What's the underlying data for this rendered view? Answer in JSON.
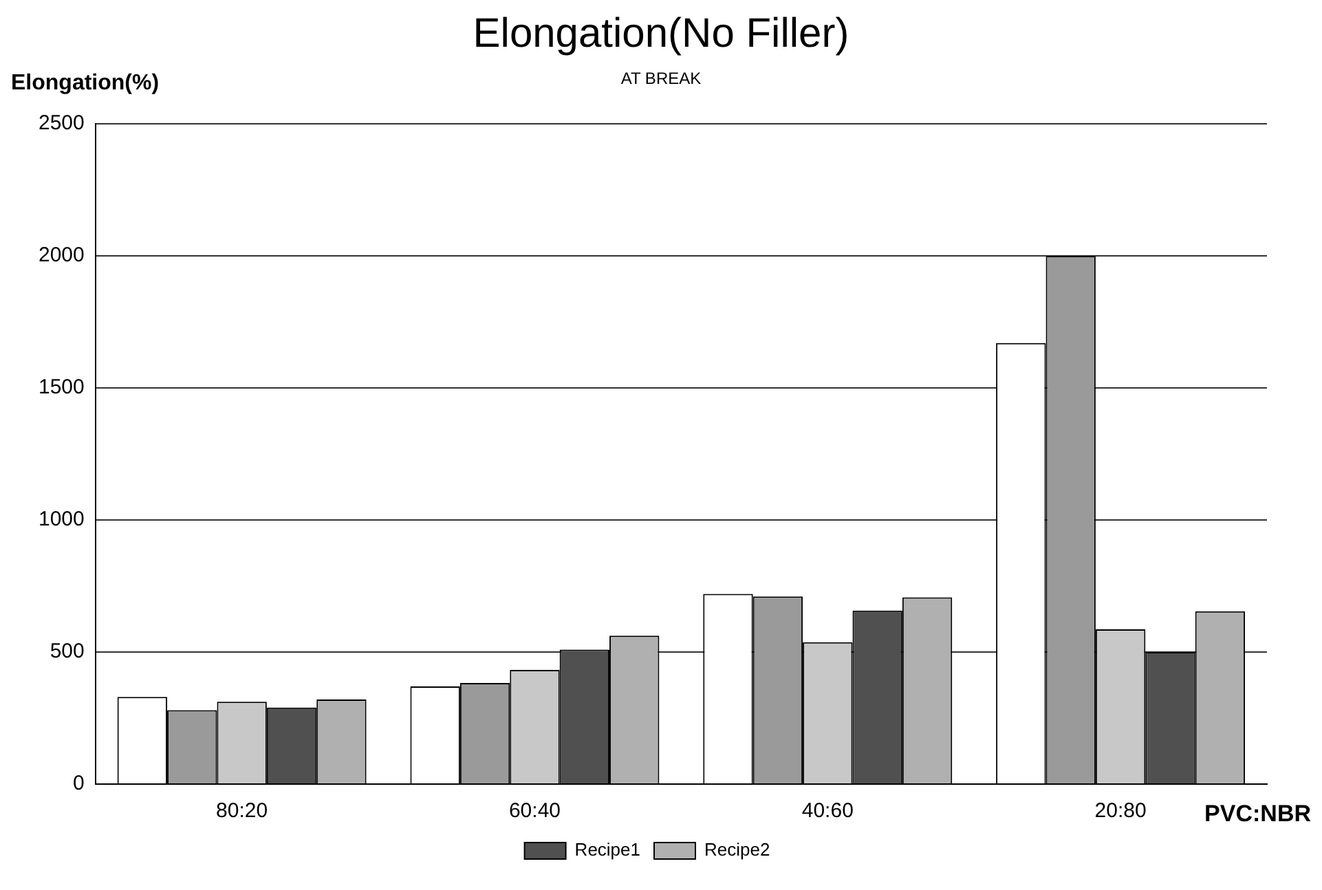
{
  "chart_data": {
    "type": "bar",
    "title": "Elongation(No Filler)",
    "subtitle": "AT BREAK",
    "ylabel": "Elongation(%)",
    "xlabel": "PVC:NBR",
    "categories": [
      "80:20",
      "60:40",
      "40:60",
      "20:80"
    ],
    "series": [
      {
        "color": "#ffffff",
        "values": [
          330,
          370,
          720,
          1670
        ]
      },
      {
        "color": "#9a9a9a",
        "values": [
          280,
          383,
          710,
          2000
        ]
      },
      {
        "color": "#c8c8c8",
        "values": [
          312,
          432,
          537,
          586
        ]
      },
      {
        "name": "Recipe1",
        "color": "#505050",
        "values": [
          290,
          509,
          657,
          500
        ]
      },
      {
        "name": "Recipe2",
        "color": "#b0b0b0",
        "values": [
          320,
          562,
          707,
          654
        ]
      }
    ],
    "ylim": [
      0,
      2500
    ],
    "yticks": [
      0,
      500,
      1000,
      1500,
      2000,
      2500
    ],
    "grid": "y",
    "legend": "bottom"
  }
}
